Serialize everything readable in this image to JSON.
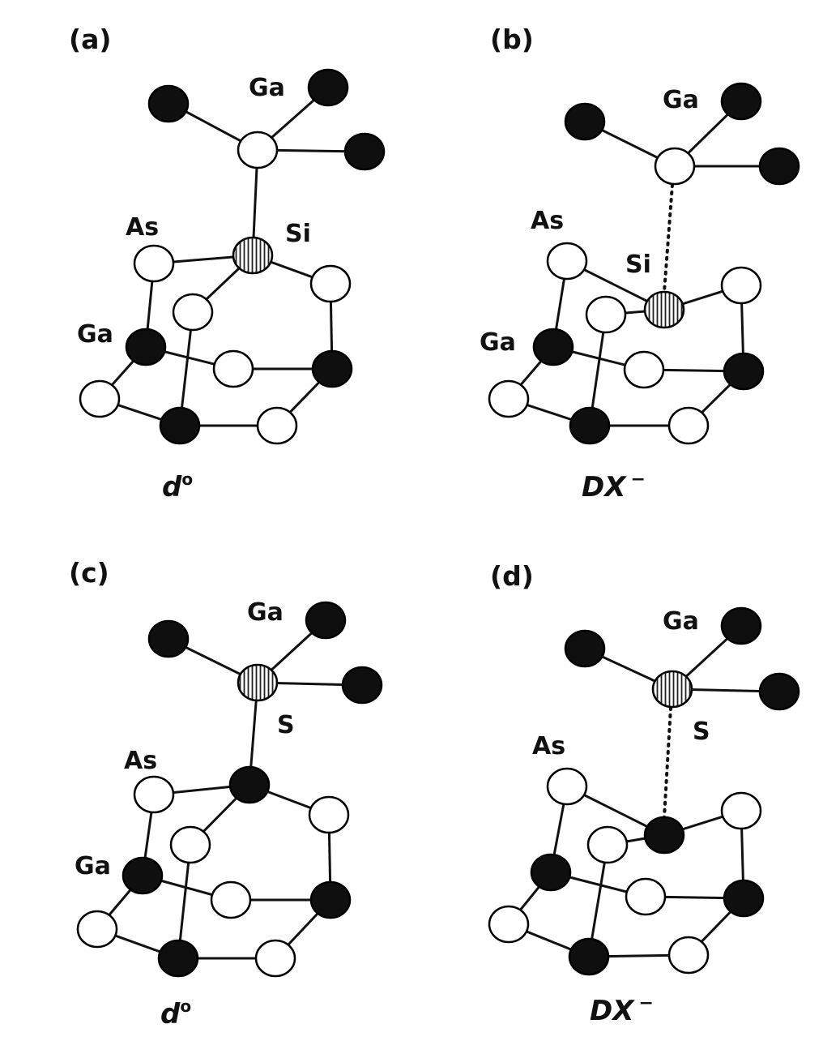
{
  "panels": [
    {
      "label": "(a)",
      "caption": "d",
      "caption_sup": "o",
      "labels": {
        "top_ga": "Ga",
        "dopant": "Si",
        "as": "As",
        "ga": "Ga"
      },
      "bond_type": "solid"
    },
    {
      "label": "(b)",
      "caption": "DX",
      "caption_sup": "−",
      "labels": {
        "top_ga": "Ga",
        "dopant": "Si",
        "as": "As",
        "ga": "Ga"
      },
      "bond_type": "dotted"
    },
    {
      "label": "(c)",
      "caption": "d",
      "caption_sup": "o",
      "labels": {
        "top_ga": "Ga",
        "dopant": "S",
        "as": "As",
        "ga": "Ga"
      },
      "bond_type": "solid"
    },
    {
      "label": "(d)",
      "caption": "DX",
      "caption_sup": "−",
      "labels": {
        "top_ga": "Ga",
        "dopant": "S",
        "as": "As"
      },
      "bond_type": "dotted"
    }
  ],
  "legend_colors": {
    "ga_atom": "#0f0f0f",
    "as_atom": "#ffffff",
    "dopant_atom": "hatched"
  }
}
